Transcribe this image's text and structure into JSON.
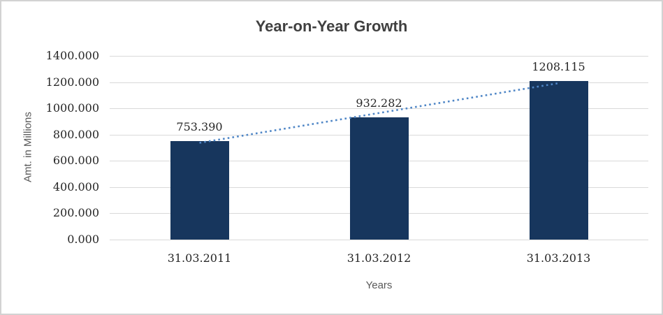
{
  "chart_data": {
    "type": "bar",
    "title": "Year-on-Year Growth",
    "categories": [
      "31.03.2011",
      "31.03.2012",
      "31.03.2013"
    ],
    "values": [
      753.39,
      932.282,
      1208.115
    ],
    "data_labels": [
      "753.390",
      "932.282",
      "1208.115"
    ],
    "xlabel": "Years",
    "ylabel": "Amt. in Millions",
    "ylim": [
      0,
      1400
    ],
    "ytick_step": 200,
    "ytick_labels": [
      "0.000",
      "200.000",
      "400.000",
      "600.000",
      "800.000",
      "1000.000",
      "1200.000",
      "1400.000"
    ],
    "grid": true,
    "legend": "none",
    "bar_color": "#17365d",
    "trendline": {
      "fit": "linear",
      "style": "dotted",
      "color": "#4f86c6"
    },
    "gridline_color": "#d9d9d9",
    "title_color": "#404040",
    "axis_title_color": "#595959",
    "label_color": "#262626"
  }
}
